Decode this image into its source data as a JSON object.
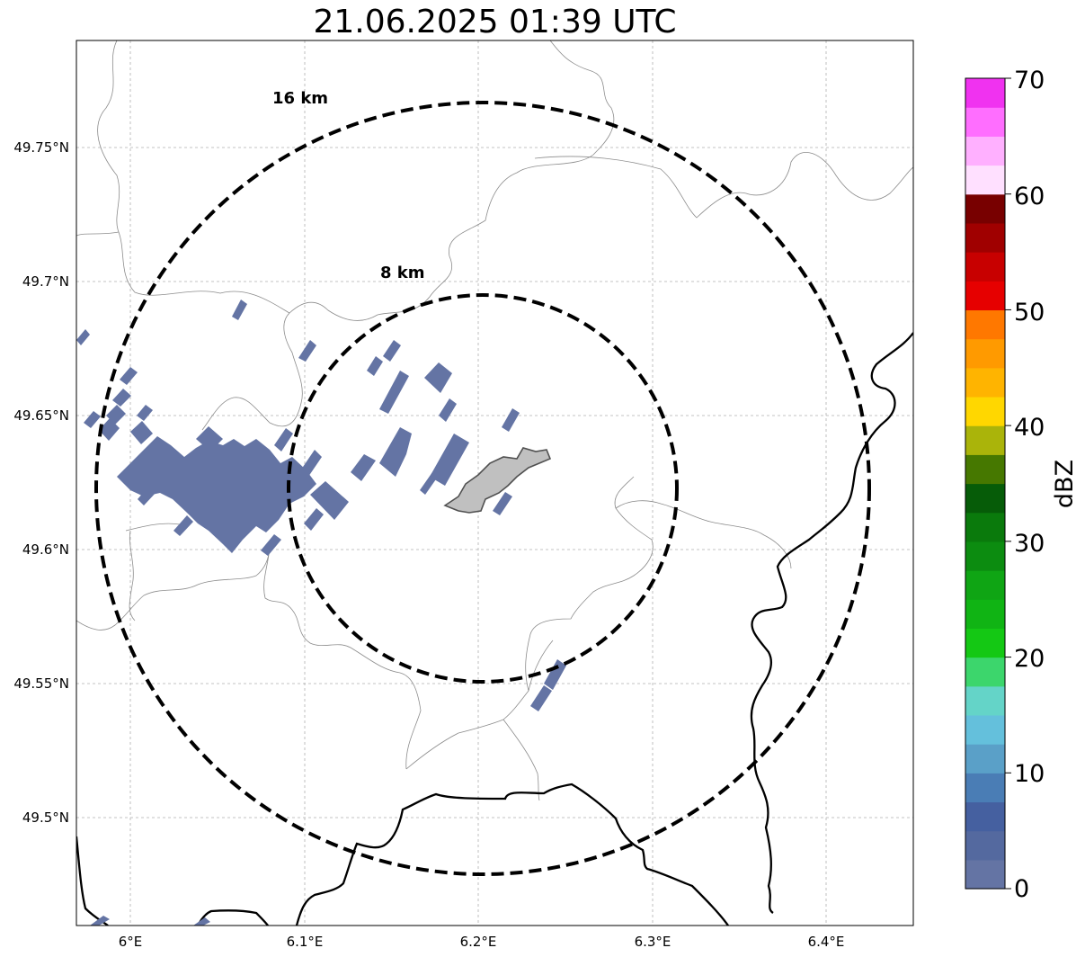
{
  "title": "21.06.2025 01:39 UTC",
  "map": {
    "lon_ticks": [
      "6°E",
      "6.1°E",
      "6.2°E",
      "6.3°E",
      "6.4°E"
    ],
    "lat_ticks": [
      "49.75°N",
      "49.7°N",
      "49.65°N",
      "49.6°N",
      "49.55°N",
      "49.5°N"
    ],
    "range_rings": [
      {
        "label": "8 km",
        "radius_km": 8
      },
      {
        "label": "16 km",
        "radius_km": 16
      }
    ],
    "radar_echo_color": "#6474a4",
    "city_fill": "#c0c0c0"
  },
  "colorbar": {
    "label": "dBZ",
    "ticks": [
      "0",
      "10",
      "20",
      "30",
      "40",
      "50",
      "60",
      "70"
    ],
    "colors": [
      "#6474a4",
      "#54699f",
      "#4560a0",
      "#4a7db5",
      "#5aa0c8",
      "#64c0dc",
      "#64d4c8",
      "#3cd66c",
      "#14c814",
      "#10b414",
      "#0fa514",
      "#0c8c10",
      "#0a7a0c",
      "#065c08",
      "#467800",
      "#aab40a",
      "#ffd700",
      "#ffb400",
      "#ff9a00",
      "#ff7800",
      "#e60000",
      "#c80000",
      "#a00000",
      "#780000",
      "#ffe0ff",
      "#ffb0ff",
      "#ff6eff",
      "#f032f0"
    ]
  }
}
